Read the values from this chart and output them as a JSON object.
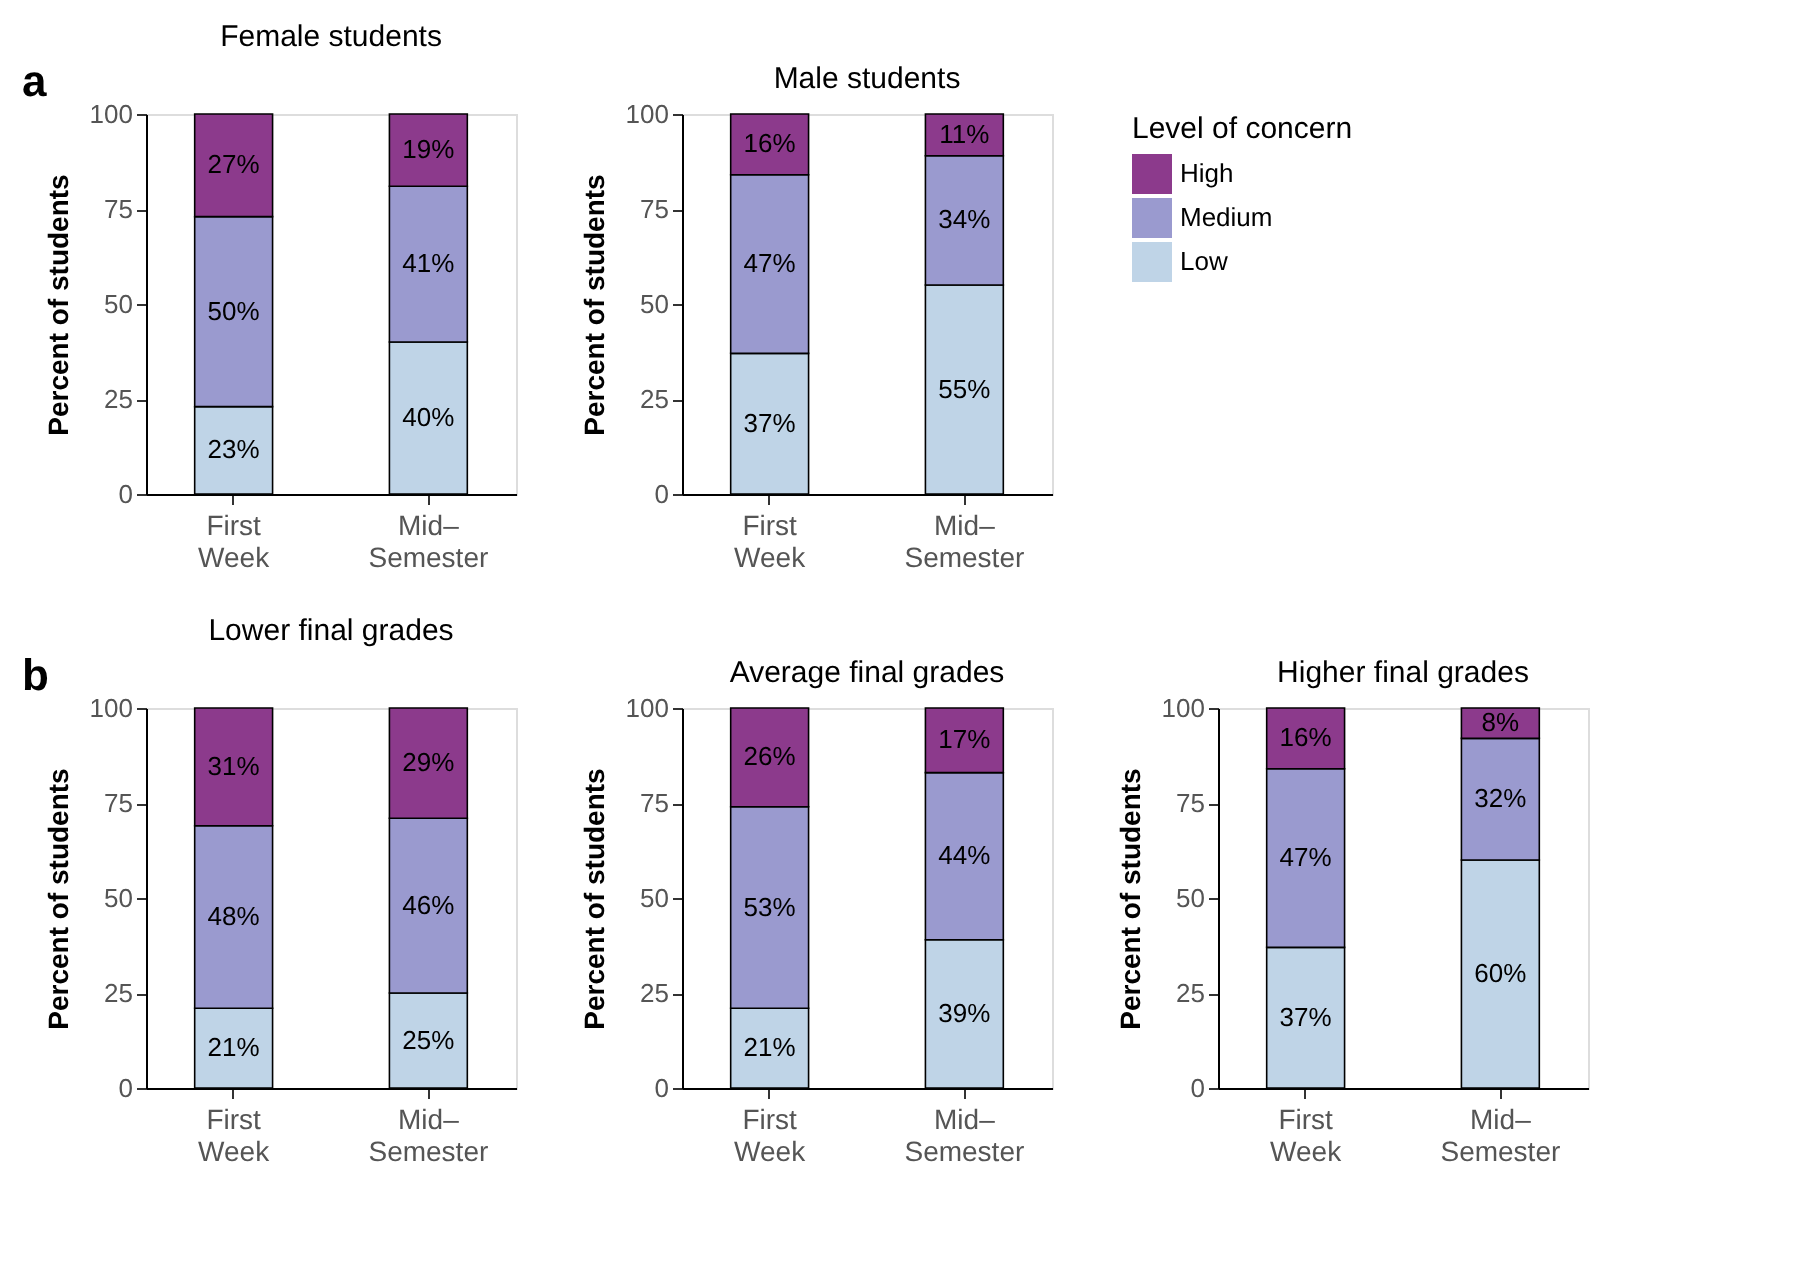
{
  "chart_data": [
    {
      "type": "bar",
      "stacked": true,
      "title": "Female students",
      "ylabel": "Percent of students",
      "annotations": [
        "a"
      ],
      "categories": [
        "First\nWeek",
        "Mid–\nSemester"
      ],
      "ylim": [
        0,
        100
      ],
      "yticks": [
        0,
        25,
        50,
        75,
        100
      ],
      "grid": false,
      "legend": false,
      "series": [
        {
          "color": "#bfd4e7",
          "values": [
            23,
            40
          ],
          "value_labels": [
            "23%",
            "40%"
          ]
        },
        {
          "color": "#9a9acf",
          "values": [
            50,
            41
          ],
          "value_labels": [
            "50%",
            "41%"
          ]
        },
        {
          "color": "#8c3a8c",
          "values": [
            27,
            19
          ],
          "value_labels": [
            "27%",
            "19%"
          ]
        }
      ]
    },
    {
      "type": "bar",
      "stacked": true,
      "title": "Male students",
      "ylabel": "Percent of students",
      "legend_title": "Level of concern",
      "categories": [
        "First\nWeek",
        "Mid–\nSemester"
      ],
      "ylim": [
        0,
        100
      ],
      "yticks": [
        0,
        25,
        50,
        75,
        100
      ],
      "grid": false,
      "legend": "right",
      "series": [
        {
          "name": "Low",
          "color": "#bfd4e7",
          "values": [
            37,
            55
          ],
          "value_labels": [
            "37%",
            "55%"
          ]
        },
        {
          "name": "Medium",
          "color": "#9a9acf",
          "values": [
            47,
            34
          ],
          "value_labels": [
            "47%",
            "34%"
          ]
        },
        {
          "name": "High",
          "color": "#8c3a8c",
          "values": [
            16,
            11
          ],
          "value_labels": [
            "16%",
            "11%"
          ]
        }
      ]
    },
    {
      "type": "bar",
      "stacked": true,
      "title": "Lower final grades",
      "ylabel": "Percent of students",
      "annotations": [
        "b"
      ],
      "categories": [
        "First\nWeek",
        "Mid–\nSemester"
      ],
      "ylim": [
        0,
        100
      ],
      "yticks": [
        0,
        25,
        50,
        75,
        100
      ],
      "grid": false,
      "legend": false,
      "series": [
        {
          "color": "#bfd4e7",
          "values": [
            21,
            25
          ],
          "value_labels": [
            "21%",
            "25%"
          ]
        },
        {
          "color": "#9a9acf",
          "values": [
            48,
            46
          ],
          "value_labels": [
            "48%",
            "46%"
          ]
        },
        {
          "color": "#8c3a8c",
          "values": [
            31,
            29
          ],
          "value_labels": [
            "31%",
            "29%"
          ]
        }
      ]
    },
    {
      "type": "bar",
      "stacked": true,
      "title": "Average final grades",
      "ylabel": "Percent of students",
      "categories": [
        "First\nWeek",
        "Mid–\nSemester"
      ],
      "ylim": [
        0,
        100
      ],
      "yticks": [
        0,
        25,
        50,
        75,
        100
      ],
      "grid": false,
      "legend": false,
      "series": [
        {
          "color": "#bfd4e7",
          "values": [
            21,
            39
          ],
          "value_labels": [
            "21%",
            "39%"
          ]
        },
        {
          "color": "#9a9acf",
          "values": [
            53,
            44
          ],
          "value_labels": [
            "53%",
            "44%"
          ]
        },
        {
          "color": "#8c3a8c",
          "values": [
            26,
            17
          ],
          "value_labels": [
            "26%",
            "17%"
          ]
        }
      ]
    },
    {
      "type": "bar",
      "stacked": true,
      "title": "Higher final grades",
      "ylabel": "Percent of students",
      "categories": [
        "First\nWeek",
        "Mid–\nSemester"
      ],
      "ylim": [
        0,
        100
      ],
      "yticks": [
        0,
        25,
        50,
        75,
        100
      ],
      "grid": false,
      "legend": false,
      "series": [
        {
          "color": "#bfd4e7",
          "values": [
            37,
            60
          ],
          "value_labels": [
            "37%",
            "60%"
          ]
        },
        {
          "color": "#9a9acf",
          "values": [
            47,
            32
          ],
          "value_labels": [
            "47%",
            "32%"
          ]
        },
        {
          "color": "#8c3a8c",
          "values": [
            16,
            8
          ],
          "value_labels": [
            "16%",
            "8%"
          ]
        }
      ]
    }
  ]
}
